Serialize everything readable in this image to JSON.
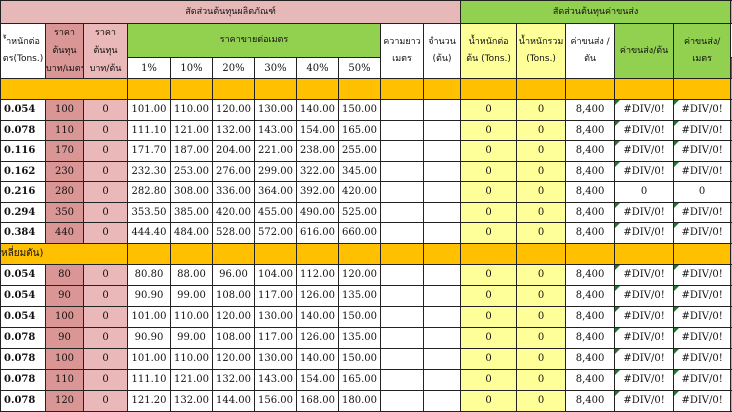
{
  "header": {
    "product_cost_group": "สัดส่วนต้นทุนผลิตภัณฑ์",
    "shipping_cost_group": "สัดส่วนต้นทุนค่าขนส่ง",
    "weight_per_meter": [
      "้ำหนักต่อ",
      "ตร(Tons.)"
    ],
    "cost_per_meter": [
      "ราคา",
      "ต้นทุน",
      "บาท/เมตร"
    ],
    "cost_per_piece": [
      "ราคา",
      "ต้นทุน",
      "บาท/ต้น"
    ],
    "sale_price_per_meter": "ราคาขายต่อเมตร",
    "markups": [
      "1%",
      "10%",
      "20%",
      "30%",
      "40%",
      "50%"
    ],
    "length": [
      "ความยาว",
      "เมตร"
    ],
    "quantity": [
      "จำนวน",
      "(ต้น)"
    ],
    "weight_per_piece": [
      "น้ำหนักต่อ",
      "ต้น (Tons.)"
    ],
    "total_weight": [
      "น้ำหนักรวม",
      "(Tons.)"
    ],
    "shipping_per_ton": [
      "ค่าขนส่ง /",
      "ตัน"
    ],
    "shipping_per_piece": "ค่าขนส่ง/ต้น",
    "shipping_per_meter": [
      "ค่าขนส่ง/",
      "เมตร"
    ]
  },
  "sections": [
    {
      "label": "",
      "rows": [
        [
          "0.054",
          "100",
          "0",
          "101.00",
          "110.00",
          "120.00",
          "130.00",
          "140.00",
          "150.00",
          "",
          "",
          "0",
          "0",
          "8,400",
          "#DIV/0!",
          "#DIV/0!"
        ],
        [
          "0.078",
          "110",
          "0",
          "111.10",
          "121.00",
          "132.00",
          "143.00",
          "154.00",
          "165.00",
          "",
          "",
          "0",
          "0",
          "8,400",
          "#DIV/0!",
          "#DIV/0!"
        ],
        [
          "0.116",
          "170",
          "0",
          "171.70",
          "187.00",
          "204.00",
          "221.00",
          "238.00",
          "255.00",
          "",
          "",
          "0",
          "0",
          "8,400",
          "#DIV/0!",
          "#DIV/0!"
        ],
        [
          "0.162",
          "230",
          "0",
          "232.30",
          "253.00",
          "276.00",
          "299.00",
          "322.00",
          "345.00",
          "",
          "",
          "0",
          "0",
          "8,400",
          "#DIV/0!",
          "#DIV/0!"
        ],
        [
          "0.216",
          "280",
          "0",
          "282.80",
          "308.00",
          "336.00",
          "364.00",
          "392.00",
          "420.00",
          "",
          "",
          "0",
          "0",
          "8,400",
          "0",
          "0"
        ],
        [
          "0.294",
          "350",
          "0",
          "353.50",
          "385.00",
          "420.00",
          "455.00",
          "490.00",
          "525.00",
          "",
          "",
          "0",
          "0",
          "8,400",
          "#DIV/0!",
          "#DIV/0!"
        ],
        [
          "0.384",
          "440",
          "0",
          "444.40",
          "484.00",
          "528.00",
          "572.00",
          "616.00",
          "660.00",
          "",
          "",
          "0",
          "0",
          "8,400",
          "#DIV/0!",
          "#DIV/0!"
        ]
      ]
    },
    {
      "label": "หลี่ยมตัน)",
      "rows": [
        [
          "0.054",
          "80",
          "0",
          "80.80",
          "88.00",
          "96.00",
          "104.00",
          "112.00",
          "120.00",
          "",
          "",
          "0",
          "0",
          "8,400",
          "#DIV/0!",
          "#DIV/0!"
        ],
        [
          "0.054",
          "90",
          "0",
          "90.90",
          "99.00",
          "108.00",
          "117.00",
          "126.00",
          "135.00",
          "",
          "",
          "0",
          "0",
          "8,400",
          "#DIV/0!",
          "#DIV/0!"
        ],
        [
          "0.054",
          "100",
          "0",
          "101.00",
          "110.00",
          "120.00",
          "130.00",
          "140.00",
          "150.00",
          "",
          "",
          "0",
          "0",
          "8,400",
          "#DIV/0!",
          "#DIV/0!"
        ],
        [
          "0.078",
          "90",
          "0",
          "90.90",
          "99.00",
          "108.00",
          "117.00",
          "126.00",
          "135.00",
          "",
          "",
          "0",
          "0",
          "8,400",
          "#DIV/0!",
          "#DIV/0!"
        ],
        [
          "0.078",
          "100",
          "0",
          "101.00",
          "110.00",
          "120.00",
          "130.00",
          "140.00",
          "150.00",
          "",
          "",
          "0",
          "0",
          "8,400",
          "#DIV/0!",
          "#DIV/0!"
        ],
        [
          "0.078",
          "110",
          "0",
          "111.10",
          "121.00",
          "132.00",
          "143.00",
          "154.00",
          "165.00",
          "",
          "",
          "0",
          "0",
          "8,400",
          "#DIV/0!",
          "#DIV/0!"
        ],
        [
          "0.078",
          "120",
          "0",
          "121.20",
          "132.00",
          "144.00",
          "156.00",
          "168.00",
          "180.00",
          "",
          "",
          "0",
          "0",
          "8,400",
          "#DIV/0!",
          "#DIV/0!"
        ]
      ]
    }
  ],
  "colors": {
    "pink_header": "#e6b9b8",
    "green_header": "#92d050",
    "section_band": "#ffc000",
    "yellow": "#ffff99",
    "cost_column": "#da9694"
  }
}
